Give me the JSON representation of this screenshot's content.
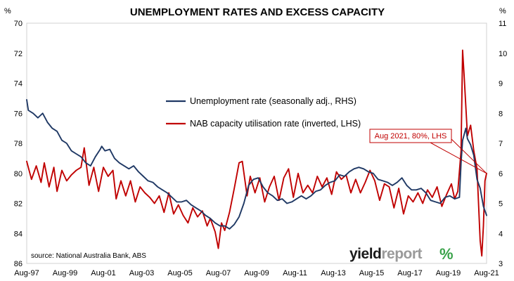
{
  "chart_data": {
    "type": "line",
    "title": "UNEMPLOYMENT RATES AND EXCESS CAPACITY",
    "left_unit": "%",
    "right_unit": "%",
    "left_axis": {
      "min": 70,
      "max": 86,
      "inverted": true,
      "ticks": [
        "70",
        "72",
        "74",
        "76",
        "78",
        "80",
        "82",
        "84",
        "86"
      ]
    },
    "right_axis": {
      "min": 3,
      "max": 11,
      "ticks": [
        "11",
        "10",
        "9",
        "8",
        "7",
        "6",
        "5",
        "4",
        "3"
      ]
    },
    "x_ticks": [
      "Aug-97",
      "Aug-99",
      "Aug-01",
      "Aug-03",
      "Aug-05",
      "Aug-07",
      "Aug-09",
      "Aug-11",
      "Aug-13",
      "Aug-15",
      "Aug-17",
      "Aug-19",
      "Aug-21"
    ],
    "x_range": [
      "1997-08",
      "2021-08"
    ],
    "grid": false,
    "legend_position": "upper-center",
    "series": [
      {
        "name": "Unemployment rate (seasonally adj., RHS)",
        "axis": "right",
        "color": "#1f3864",
        "points": [
          [
            "1997-08",
            8.45
          ],
          [
            "1997-09",
            8.1
          ],
          [
            "1997-12",
            8.0
          ],
          [
            "1998-03",
            7.85
          ],
          [
            "1998-04",
            7.9
          ],
          [
            "1998-06",
            8.0
          ],
          [
            "1998-09",
            7.7
          ],
          [
            "1998-12",
            7.5
          ],
          [
            "1999-03",
            7.4
          ],
          [
            "1999-06",
            7.1
          ],
          [
            "1999-09",
            7.0
          ],
          [
            "1999-12",
            6.75
          ],
          [
            "2000-03",
            6.65
          ],
          [
            "2000-06",
            6.55
          ],
          [
            "2000-09",
            6.35
          ],
          [
            "2000-12",
            6.25
          ],
          [
            "2001-03",
            6.55
          ],
          [
            "2001-06",
            6.8
          ],
          [
            "2001-07",
            6.9
          ],
          [
            "2001-09",
            6.75
          ],
          [
            "2001-12",
            6.8
          ],
          [
            "2002-03",
            6.5
          ],
          [
            "2002-06",
            6.35
          ],
          [
            "2002-09",
            6.25
          ],
          [
            "2002-12",
            6.15
          ],
          [
            "2003-03",
            6.25
          ],
          [
            "2003-06",
            6.05
          ],
          [
            "2003-09",
            5.9
          ],
          [
            "2003-12",
            5.75
          ],
          [
            "2004-03",
            5.7
          ],
          [
            "2004-06",
            5.55
          ],
          [
            "2004-09",
            5.45
          ],
          [
            "2004-12",
            5.35
          ],
          [
            "2005-03",
            5.2
          ],
          [
            "2005-06",
            5.05
          ],
          [
            "2005-09",
            5.05
          ],
          [
            "2005-12",
            5.1
          ],
          [
            "2006-03",
            4.95
          ],
          [
            "2006-06",
            4.85
          ],
          [
            "2006-09",
            4.75
          ],
          [
            "2006-12",
            4.6
          ],
          [
            "2007-03",
            4.5
          ],
          [
            "2007-06",
            4.35
          ],
          [
            "2007-09",
            4.25
          ],
          [
            "2007-12",
            4.25
          ],
          [
            "2008-03",
            4.15
          ],
          [
            "2008-06",
            4.3
          ],
          [
            "2008-09",
            4.55
          ],
          [
            "2008-12",
            5.0
          ],
          [
            "2009-03",
            5.6
          ],
          [
            "2009-06",
            5.8
          ],
          [
            "2009-09",
            5.85
          ],
          [
            "2009-12",
            5.55
          ],
          [
            "2010-03",
            5.35
          ],
          [
            "2010-06",
            5.25
          ],
          [
            "2010-09",
            5.1
          ],
          [
            "2010-12",
            5.15
          ],
          [
            "2011-03",
            5.0
          ],
          [
            "2011-06",
            5.05
          ],
          [
            "2011-09",
            5.15
          ],
          [
            "2011-12",
            5.25
          ],
          [
            "2012-03",
            5.15
          ],
          [
            "2012-06",
            5.25
          ],
          [
            "2012-09",
            5.4
          ],
          [
            "2012-12",
            5.45
          ],
          [
            "2013-03",
            5.6
          ],
          [
            "2013-06",
            5.7
          ],
          [
            "2013-09",
            5.75
          ],
          [
            "2013-12",
            5.95
          ],
          [
            "2014-03",
            5.9
          ],
          [
            "2014-06",
            6.05
          ],
          [
            "2014-09",
            6.15
          ],
          [
            "2014-12",
            6.2
          ],
          [
            "2015-03",
            6.15
          ],
          [
            "2015-06",
            6.05
          ],
          [
            "2015-09",
            6.0
          ],
          [
            "2015-12",
            5.8
          ],
          [
            "2016-03",
            5.75
          ],
          [
            "2016-06",
            5.7
          ],
          [
            "2016-09",
            5.6
          ],
          [
            "2016-12",
            5.7
          ],
          [
            "2017-03",
            5.85
          ],
          [
            "2017-06",
            5.6
          ],
          [
            "2017-09",
            5.45
          ],
          [
            "2017-12",
            5.45
          ],
          [
            "2018-03",
            5.5
          ],
          [
            "2018-06",
            5.35
          ],
          [
            "2018-09",
            5.1
          ],
          [
            "2018-12",
            5.05
          ],
          [
            "2019-03",
            5.0
          ],
          [
            "2019-06",
            5.2
          ],
          [
            "2019-09",
            5.25
          ],
          [
            "2019-12",
            5.15
          ],
          [
            "2020-03",
            5.2
          ],
          [
            "2020-04",
            6.35
          ],
          [
            "2020-05",
            7.1
          ],
          [
            "2020-07",
            7.5
          ],
          [
            "2020-08",
            7.15
          ],
          [
            "2020-10",
            6.95
          ],
          [
            "2020-12",
            6.6
          ],
          [
            "2021-02",
            5.8
          ],
          [
            "2021-04",
            5.5
          ],
          [
            "2021-06",
            4.9
          ],
          [
            "2021-08",
            4.6
          ]
        ]
      },
      {
        "name": "NAB capacity utilisation rate (inverted, LHS)",
        "axis": "left",
        "color": "#c00000",
        "points": [
          [
            "1997-08",
            79.2
          ],
          [
            "1997-11",
            80.4
          ],
          [
            "1998-02",
            79.5
          ],
          [
            "1998-05",
            80.6
          ],
          [
            "1998-07",
            79.3
          ],
          [
            "1998-10",
            80.9
          ],
          [
            "1999-01",
            79.6
          ],
          [
            "1999-03",
            81.2
          ],
          [
            "1999-06",
            79.8
          ],
          [
            "1999-09",
            80.5
          ],
          [
            "1999-12",
            80.1
          ],
          [
            "2000-03",
            79.8
          ],
          [
            "2000-06",
            79.6
          ],
          [
            "2000-08",
            78.3
          ],
          [
            "2000-11",
            80.8
          ],
          [
            "2001-02",
            79.6
          ],
          [
            "2001-05",
            81.2
          ],
          [
            "2001-08",
            79.6
          ],
          [
            "2001-11",
            80.2
          ],
          [
            "2002-02",
            79.8
          ],
          [
            "2002-04",
            81.7
          ],
          [
            "2002-07",
            80.5
          ],
          [
            "2002-10",
            81.5
          ],
          [
            "2003-01",
            80.5
          ],
          [
            "2003-04",
            81.9
          ],
          [
            "2003-07",
            80.9
          ],
          [
            "2003-10",
            81.3
          ],
          [
            "2004-01",
            81.6
          ],
          [
            "2004-04",
            82.0
          ],
          [
            "2004-07",
            81.5
          ],
          [
            "2004-10",
            82.6
          ],
          [
            "2005-01",
            81.3
          ],
          [
            "2005-04",
            82.7
          ],
          [
            "2005-07",
            82.1
          ],
          [
            "2005-10",
            82.8
          ],
          [
            "2006-01",
            83.3
          ],
          [
            "2006-04",
            82.3
          ],
          [
            "2006-07",
            82.9
          ],
          [
            "2006-10",
            82.5
          ],
          [
            "2007-01",
            83.5
          ],
          [
            "2007-03",
            83.0
          ],
          [
            "2007-06",
            83.9
          ],
          [
            "2007-08",
            85.0
          ],
          [
            "2007-10",
            83.3
          ],
          [
            "2007-12",
            83.8
          ],
          [
            "2008-03",
            82.6
          ],
          [
            "2008-06",
            81.0
          ],
          [
            "2008-09",
            79.3
          ],
          [
            "2008-11",
            79.2
          ],
          [
            "2009-02",
            81.5
          ],
          [
            "2009-04",
            80.2
          ],
          [
            "2009-07",
            81.3
          ],
          [
            "2009-10",
            80.3
          ],
          [
            "2010-01",
            81.9
          ],
          [
            "2010-04",
            80.9
          ],
          [
            "2010-07",
            80.2
          ],
          [
            "2010-10",
            81.8
          ],
          [
            "2011-01",
            80.3
          ],
          [
            "2011-04",
            79.7
          ],
          [
            "2011-07",
            81.6
          ],
          [
            "2011-10",
            80.0
          ],
          [
            "2012-01",
            81.3
          ],
          [
            "2012-04",
            80.8
          ],
          [
            "2012-07",
            81.3
          ],
          [
            "2012-10",
            80.2
          ],
          [
            "2013-01",
            80.9
          ],
          [
            "2013-04",
            80.3
          ],
          [
            "2013-07",
            81.4
          ],
          [
            "2013-10",
            79.9
          ],
          [
            "2014-01",
            80.4
          ],
          [
            "2014-04",
            80.1
          ],
          [
            "2014-07",
            81.3
          ],
          [
            "2014-10",
            80.4
          ],
          [
            "2015-01",
            81.3
          ],
          [
            "2015-04",
            80.6
          ],
          [
            "2015-07",
            79.8
          ],
          [
            "2015-10",
            80.5
          ],
          [
            "2016-01",
            81.8
          ],
          [
            "2016-04",
            80.7
          ],
          [
            "2016-07",
            80.9
          ],
          [
            "2016-10",
            82.3
          ],
          [
            "2017-01",
            81.0
          ],
          [
            "2017-04",
            82.7
          ],
          [
            "2017-07",
            81.5
          ],
          [
            "2017-10",
            81.9
          ],
          [
            "2018-01",
            81.3
          ],
          [
            "2018-04",
            82.0
          ],
          [
            "2018-07",
            81.1
          ],
          [
            "2018-10",
            81.6
          ],
          [
            "2019-01",
            80.9
          ],
          [
            "2019-04",
            82.2
          ],
          [
            "2019-07",
            81.4
          ],
          [
            "2019-10",
            80.7
          ],
          [
            "2019-12",
            81.7
          ],
          [
            "2020-02",
            81.2
          ],
          [
            "2020-04",
            78.5
          ],
          [
            "2020-05",
            71.8
          ],
          [
            "2020-06",
            73.6
          ],
          [
            "2020-08",
            77.5
          ],
          [
            "2020-10",
            76.8
          ],
          [
            "2020-12",
            78.5
          ],
          [
            "2021-02",
            79.7
          ],
          [
            "2021-04",
            84.5
          ],
          [
            "2021-05",
            85.5
          ],
          [
            "2021-06",
            83.5
          ],
          [
            "2021-07",
            80.5
          ],
          [
            "2021-08",
            80.0
          ]
        ]
      }
    ],
    "annotation": {
      "text": "Aug 2021, 80%, LHS",
      "target": [
        "2021-08",
        80
      ]
    },
    "source": "source: National Australia Bank, ABS"
  },
  "brand": {
    "part1": "yield",
    "part2": "report",
    "mark": "%"
  }
}
